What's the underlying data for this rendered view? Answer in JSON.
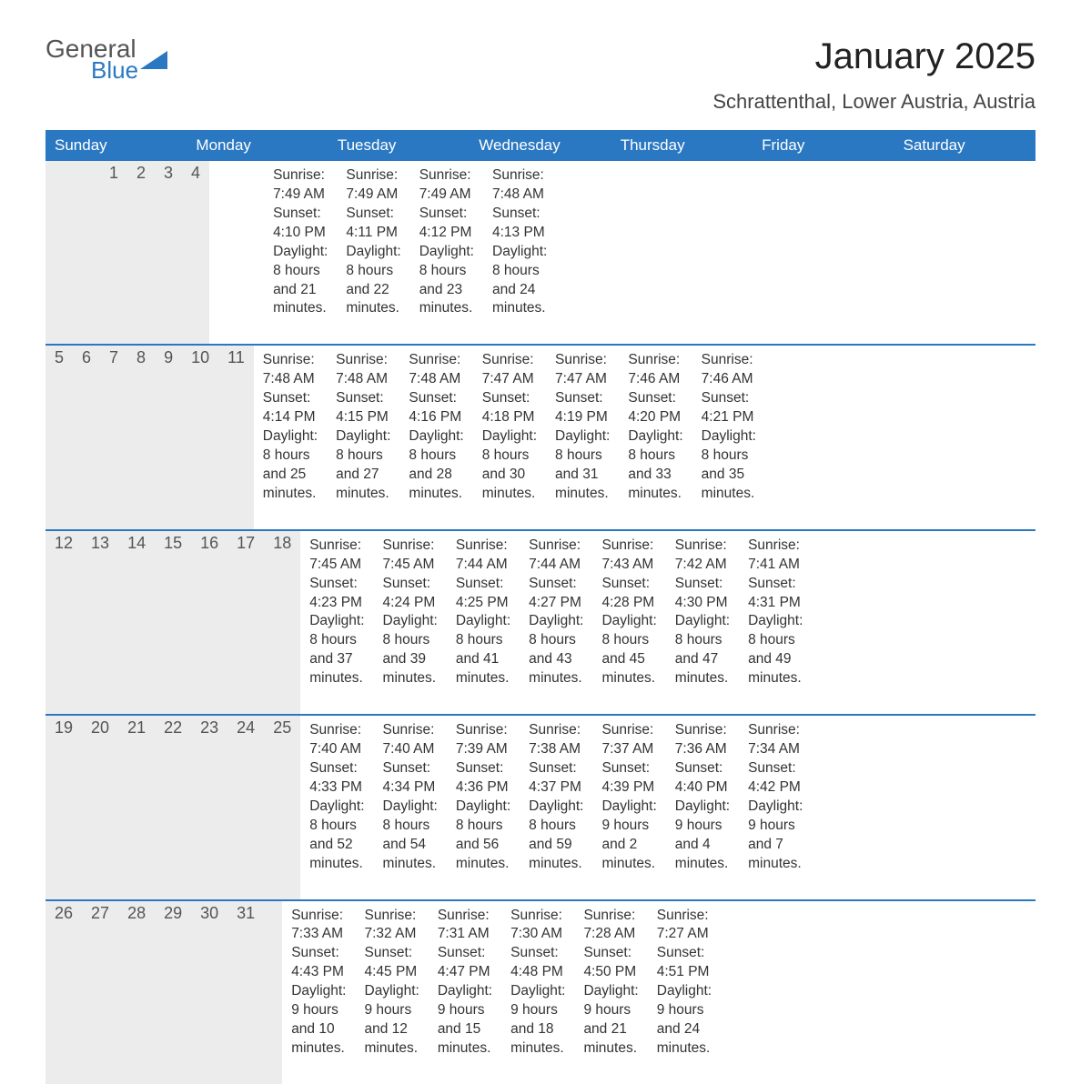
{
  "logo": {
    "text_top": "General",
    "text_bottom": "Blue",
    "top_color": "#555555",
    "bottom_color": "#2b78c2",
    "triangle_color": "#2b78c2"
  },
  "title": "January 2025",
  "location": "Schrattenthal, Lower Austria, Austria",
  "colors": {
    "header_bg": "#2b78c2",
    "header_text": "#ffffff",
    "daynum_bg": "#ececec",
    "daynum_text": "#555555",
    "body_text": "#333333",
    "border": "#2b78c2",
    "page_bg": "#ffffff"
  },
  "day_headers": [
    "Sunday",
    "Monday",
    "Tuesday",
    "Wednesday",
    "Thursday",
    "Friday",
    "Saturday"
  ],
  "weeks": [
    {
      "days": [
        {
          "num": "",
          "sunrise": "",
          "sunset": "",
          "daylight1": "",
          "daylight2": ""
        },
        {
          "num": "",
          "sunrise": "",
          "sunset": "",
          "daylight1": "",
          "daylight2": ""
        },
        {
          "num": "",
          "sunrise": "",
          "sunset": "",
          "daylight1": "",
          "daylight2": ""
        },
        {
          "num": "1",
          "sunrise": "Sunrise: 7:49 AM",
          "sunset": "Sunset: 4:10 PM",
          "daylight1": "Daylight: 8 hours",
          "daylight2": "and 21 minutes."
        },
        {
          "num": "2",
          "sunrise": "Sunrise: 7:49 AM",
          "sunset": "Sunset: 4:11 PM",
          "daylight1": "Daylight: 8 hours",
          "daylight2": "and 22 minutes."
        },
        {
          "num": "3",
          "sunrise": "Sunrise: 7:49 AM",
          "sunset": "Sunset: 4:12 PM",
          "daylight1": "Daylight: 8 hours",
          "daylight2": "and 23 minutes."
        },
        {
          "num": "4",
          "sunrise": "Sunrise: 7:48 AM",
          "sunset": "Sunset: 4:13 PM",
          "daylight1": "Daylight: 8 hours",
          "daylight2": "and 24 minutes."
        }
      ]
    },
    {
      "days": [
        {
          "num": "5",
          "sunrise": "Sunrise: 7:48 AM",
          "sunset": "Sunset: 4:14 PM",
          "daylight1": "Daylight: 8 hours",
          "daylight2": "and 25 minutes."
        },
        {
          "num": "6",
          "sunrise": "Sunrise: 7:48 AM",
          "sunset": "Sunset: 4:15 PM",
          "daylight1": "Daylight: 8 hours",
          "daylight2": "and 27 minutes."
        },
        {
          "num": "7",
          "sunrise": "Sunrise: 7:48 AM",
          "sunset": "Sunset: 4:16 PM",
          "daylight1": "Daylight: 8 hours",
          "daylight2": "and 28 minutes."
        },
        {
          "num": "8",
          "sunrise": "Sunrise: 7:47 AM",
          "sunset": "Sunset: 4:18 PM",
          "daylight1": "Daylight: 8 hours",
          "daylight2": "and 30 minutes."
        },
        {
          "num": "9",
          "sunrise": "Sunrise: 7:47 AM",
          "sunset": "Sunset: 4:19 PM",
          "daylight1": "Daylight: 8 hours",
          "daylight2": "and 31 minutes."
        },
        {
          "num": "10",
          "sunrise": "Sunrise: 7:46 AM",
          "sunset": "Sunset: 4:20 PM",
          "daylight1": "Daylight: 8 hours",
          "daylight2": "and 33 minutes."
        },
        {
          "num": "11",
          "sunrise": "Sunrise: 7:46 AM",
          "sunset": "Sunset: 4:21 PM",
          "daylight1": "Daylight: 8 hours",
          "daylight2": "and 35 minutes."
        }
      ]
    },
    {
      "days": [
        {
          "num": "12",
          "sunrise": "Sunrise: 7:45 AM",
          "sunset": "Sunset: 4:23 PM",
          "daylight1": "Daylight: 8 hours",
          "daylight2": "and 37 minutes."
        },
        {
          "num": "13",
          "sunrise": "Sunrise: 7:45 AM",
          "sunset": "Sunset: 4:24 PM",
          "daylight1": "Daylight: 8 hours",
          "daylight2": "and 39 minutes."
        },
        {
          "num": "14",
          "sunrise": "Sunrise: 7:44 AM",
          "sunset": "Sunset: 4:25 PM",
          "daylight1": "Daylight: 8 hours",
          "daylight2": "and 41 minutes."
        },
        {
          "num": "15",
          "sunrise": "Sunrise: 7:44 AM",
          "sunset": "Sunset: 4:27 PM",
          "daylight1": "Daylight: 8 hours",
          "daylight2": "and 43 minutes."
        },
        {
          "num": "16",
          "sunrise": "Sunrise: 7:43 AM",
          "sunset": "Sunset: 4:28 PM",
          "daylight1": "Daylight: 8 hours",
          "daylight2": "and 45 minutes."
        },
        {
          "num": "17",
          "sunrise": "Sunrise: 7:42 AM",
          "sunset": "Sunset: 4:30 PM",
          "daylight1": "Daylight: 8 hours",
          "daylight2": "and 47 minutes."
        },
        {
          "num": "18",
          "sunrise": "Sunrise: 7:41 AM",
          "sunset": "Sunset: 4:31 PM",
          "daylight1": "Daylight: 8 hours",
          "daylight2": "and 49 minutes."
        }
      ]
    },
    {
      "days": [
        {
          "num": "19",
          "sunrise": "Sunrise: 7:40 AM",
          "sunset": "Sunset: 4:33 PM",
          "daylight1": "Daylight: 8 hours",
          "daylight2": "and 52 minutes."
        },
        {
          "num": "20",
          "sunrise": "Sunrise: 7:40 AM",
          "sunset": "Sunset: 4:34 PM",
          "daylight1": "Daylight: 8 hours",
          "daylight2": "and 54 minutes."
        },
        {
          "num": "21",
          "sunrise": "Sunrise: 7:39 AM",
          "sunset": "Sunset: 4:36 PM",
          "daylight1": "Daylight: 8 hours",
          "daylight2": "and 56 minutes."
        },
        {
          "num": "22",
          "sunrise": "Sunrise: 7:38 AM",
          "sunset": "Sunset: 4:37 PM",
          "daylight1": "Daylight: 8 hours",
          "daylight2": "and 59 minutes."
        },
        {
          "num": "23",
          "sunrise": "Sunrise: 7:37 AM",
          "sunset": "Sunset: 4:39 PM",
          "daylight1": "Daylight: 9 hours",
          "daylight2": "and 2 minutes."
        },
        {
          "num": "24",
          "sunrise": "Sunrise: 7:36 AM",
          "sunset": "Sunset: 4:40 PM",
          "daylight1": "Daylight: 9 hours",
          "daylight2": "and 4 minutes."
        },
        {
          "num": "25",
          "sunrise": "Sunrise: 7:34 AM",
          "sunset": "Sunset: 4:42 PM",
          "daylight1": "Daylight: 9 hours",
          "daylight2": "and 7 minutes."
        }
      ]
    },
    {
      "days": [
        {
          "num": "26",
          "sunrise": "Sunrise: 7:33 AM",
          "sunset": "Sunset: 4:43 PM",
          "daylight1": "Daylight: 9 hours",
          "daylight2": "and 10 minutes."
        },
        {
          "num": "27",
          "sunrise": "Sunrise: 7:32 AM",
          "sunset": "Sunset: 4:45 PM",
          "daylight1": "Daylight: 9 hours",
          "daylight2": "and 12 minutes."
        },
        {
          "num": "28",
          "sunrise": "Sunrise: 7:31 AM",
          "sunset": "Sunset: 4:47 PM",
          "daylight1": "Daylight: 9 hours",
          "daylight2": "and 15 minutes."
        },
        {
          "num": "29",
          "sunrise": "Sunrise: 7:30 AM",
          "sunset": "Sunset: 4:48 PM",
          "daylight1": "Daylight: 9 hours",
          "daylight2": "and 18 minutes."
        },
        {
          "num": "30",
          "sunrise": "Sunrise: 7:28 AM",
          "sunset": "Sunset: 4:50 PM",
          "daylight1": "Daylight: 9 hours",
          "daylight2": "and 21 minutes."
        },
        {
          "num": "31",
          "sunrise": "Sunrise: 7:27 AM",
          "sunset": "Sunset: 4:51 PM",
          "daylight1": "Daylight: 9 hours",
          "daylight2": "and 24 minutes."
        },
        {
          "num": "",
          "sunrise": "",
          "sunset": "",
          "daylight1": "",
          "daylight2": ""
        }
      ]
    }
  ]
}
